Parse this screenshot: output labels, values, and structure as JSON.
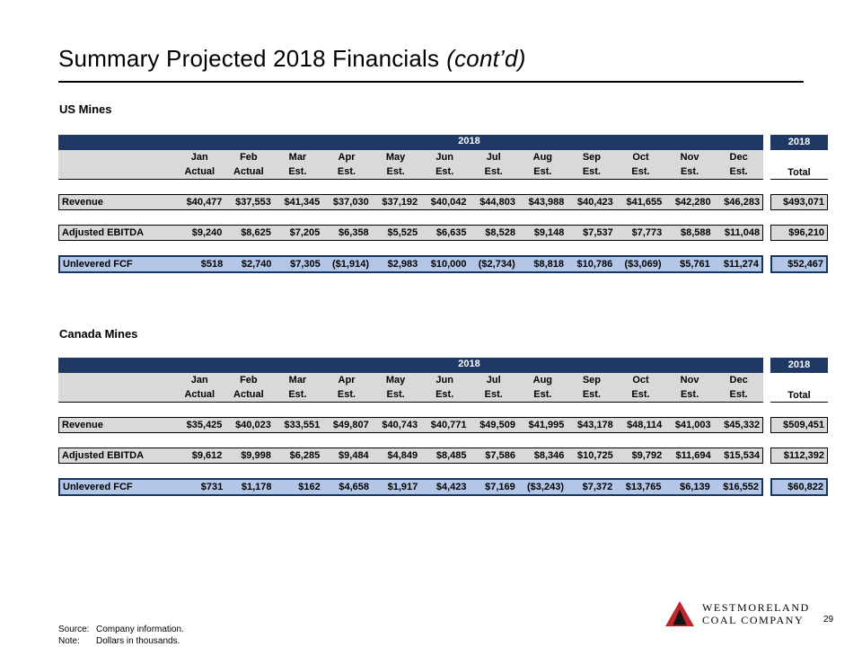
{
  "slide": {
    "title": "Summary Projected 2018 Financials",
    "title_suffix": "(cont’d)",
    "page_number": "29",
    "footer": {
      "source_label": "Source:",
      "source_text": "Company information.",
      "note_label": "Note:",
      "note_text": "Dollars in thousands."
    },
    "logo": {
      "line1": "WESTMORELAND",
      "line2": "COAL COMPANY"
    }
  },
  "colors": {
    "band_navy": "#1F3864",
    "row_gray": "#D9D9D9",
    "fcf_blue": "#B3C6E7",
    "fcf_border": "#16365C",
    "logo_red": "#C0272D"
  },
  "tables": [
    {
      "section_label": "US Mines",
      "year_header": "2018",
      "total_year_header": "2018",
      "total_label": "Total",
      "columns": [
        {
          "l1": "Jan",
          "l2": "Actual"
        },
        {
          "l1": "Feb",
          "l2": "Actual"
        },
        {
          "l1": "Mar",
          "l2": "Est."
        },
        {
          "l1": "Apr",
          "l2": "Est."
        },
        {
          "l1": "May",
          "l2": "Est."
        },
        {
          "l1": "Jun",
          "l2": "Est."
        },
        {
          "l1": "Jul",
          "l2": "Est."
        },
        {
          "l1": "Aug",
          "l2": "Est."
        },
        {
          "l1": "Sep",
          "l2": "Est."
        },
        {
          "l1": "Oct",
          "l2": "Est."
        },
        {
          "l1": "Nov",
          "l2": "Est."
        },
        {
          "l1": "Dec",
          "l2": "Est."
        }
      ],
      "rows": [
        {
          "label": "Revenue",
          "style": "gray",
          "values": [
            "$40,477",
            "$37,553",
            "$41,345",
            "$37,030",
            "$37,192",
            "$40,042",
            "$44,803",
            "$43,988",
            "$40,423",
            "$41,655",
            "$42,280",
            "$46,283"
          ],
          "total": "$493,071"
        },
        {
          "label": "Adjusted EBITDA",
          "style": "gray",
          "values": [
            "$9,240",
            "$8,625",
            "$7,205",
            "$6,358",
            "$5,525",
            "$6,635",
            "$8,528",
            "$9,148",
            "$7,537",
            "$7,773",
            "$8,588",
            "$11,048"
          ],
          "total": "$96,210"
        },
        {
          "label": "Unlevered FCF",
          "style": "blue",
          "values": [
            "$518",
            "$2,740",
            "$7,305",
            "($1,914)",
            "$2,983",
            "$10,000",
            "($2,734)",
            "$8,818",
            "$10,786",
            "($3,069)",
            "$5,761",
            "$11,274"
          ],
          "total": "$52,467"
        }
      ]
    },
    {
      "section_label": "Canada Mines",
      "year_header": "2018",
      "total_year_header": "2018",
      "total_label": "Total",
      "columns": [
        {
          "l1": "Jan",
          "l2": "Actual"
        },
        {
          "l1": "Feb",
          "l2": "Actual"
        },
        {
          "l1": "Mar",
          "l2": "Est."
        },
        {
          "l1": "Apr",
          "l2": "Est."
        },
        {
          "l1": "May",
          "l2": "Est."
        },
        {
          "l1": "Jun",
          "l2": "Est."
        },
        {
          "l1": "Jul",
          "l2": "Est."
        },
        {
          "l1": "Aug",
          "l2": "Est."
        },
        {
          "l1": "Sep",
          "l2": "Est."
        },
        {
          "l1": "Oct",
          "l2": "Est."
        },
        {
          "l1": "Nov",
          "l2": "Est."
        },
        {
          "l1": "Dec",
          "l2": "Est."
        }
      ],
      "rows": [
        {
          "label": "Revenue",
          "style": "gray",
          "values": [
            "$35,425",
            "$40,023",
            "$33,551",
            "$49,807",
            "$40,743",
            "$40,771",
            "$49,509",
            "$41,995",
            "$43,178",
            "$48,114",
            "$41,003",
            "$45,332"
          ],
          "total": "$509,451"
        },
        {
          "label": "Adjusted EBITDA",
          "style": "gray",
          "values": [
            "$9,612",
            "$9,998",
            "$6,285",
            "$9,484",
            "$4,849",
            "$8,485",
            "$7,586",
            "$8,346",
            "$10,725",
            "$9,792",
            "$11,694",
            "$15,534"
          ],
          "total": "$112,392"
        },
        {
          "label": "Unlevered FCF",
          "style": "blue",
          "values": [
            "$731",
            "$1,178",
            "$162",
            "$4,658",
            "$1,917",
            "$4,423",
            "$7,169",
            "($3,243)",
            "$7,372",
            "$13,765",
            "$6,139",
            "$16,552"
          ],
          "total": "$60,822"
        }
      ]
    }
  ]
}
